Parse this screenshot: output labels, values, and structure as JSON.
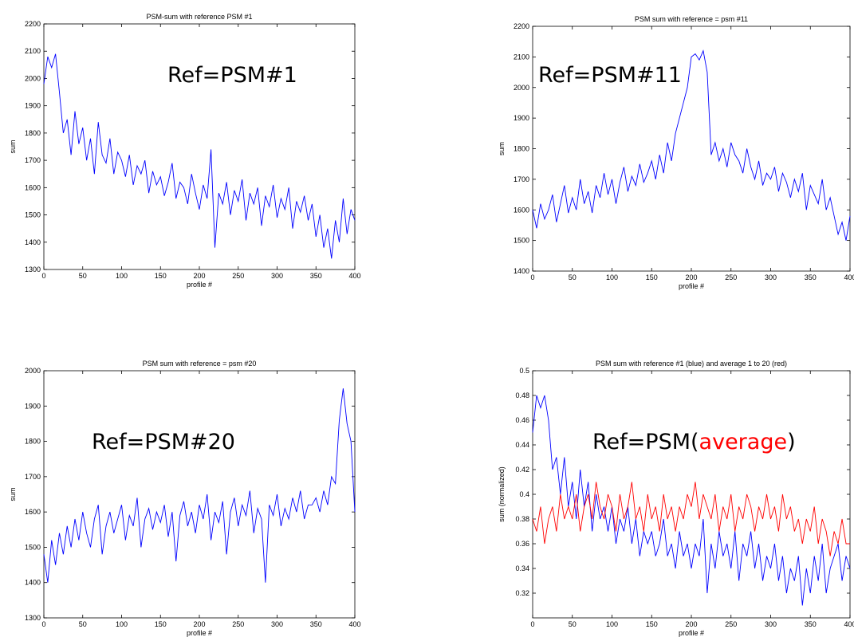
{
  "chart_data": [
    {
      "type": "line",
      "title": "PSM-sum with reference PSM #1",
      "xlabel": "profile #",
      "ylabel": "sum",
      "annotation": [
        {
          "text": "Ref=PSM#1",
          "color": "#000000"
        }
      ],
      "xlim": [
        0,
        400
      ],
      "xticks": [
        0,
        50,
        100,
        150,
        200,
        250,
        300,
        350,
        400
      ],
      "ylim": [
        1300,
        2200
      ],
      "yticks": [
        1300,
        1400,
        1500,
        1600,
        1700,
        1800,
        1900,
        2000,
        2100,
        2200
      ],
      "x": [
        0,
        5,
        10,
        15,
        20,
        25,
        30,
        35,
        40,
        45,
        50,
        55,
        60,
        65,
        70,
        75,
        80,
        85,
        90,
        95,
        100,
        105,
        110,
        115,
        120,
        125,
        130,
        135,
        140,
        145,
        150,
        155,
        160,
        165,
        170,
        175,
        180,
        185,
        190,
        195,
        200,
        205,
        210,
        215,
        220,
        225,
        230,
        235,
        240,
        245,
        250,
        255,
        260,
        265,
        270,
        275,
        280,
        285,
        290,
        295,
        300,
        305,
        310,
        315,
        320,
        325,
        330,
        335,
        340,
        345,
        350,
        355,
        360,
        365,
        370,
        375,
        380,
        385,
        390,
        395,
        400
      ],
      "series": [
        {
          "color": "#0000ff",
          "values": [
            1980,
            2080,
            2040,
            2090,
            1950,
            1800,
            1850,
            1720,
            1880,
            1760,
            1820,
            1700,
            1780,
            1650,
            1840,
            1720,
            1690,
            1780,
            1650,
            1730,
            1700,
            1640,
            1720,
            1610,
            1680,
            1650,
            1700,
            1580,
            1660,
            1610,
            1640,
            1570,
            1620,
            1690,
            1560,
            1620,
            1600,
            1540,
            1650,
            1580,
            1520,
            1610,
            1560,
            1740,
            1380,
            1580,
            1540,
            1620,
            1500,
            1590,
            1550,
            1630,
            1480,
            1580,
            1540,
            1600,
            1460,
            1570,
            1530,
            1610,
            1490,
            1560,
            1520,
            1600,
            1450,
            1550,
            1510,
            1570,
            1480,
            1540,
            1420,
            1500,
            1380,
            1450,
            1340,
            1480,
            1400,
            1560,
            1430,
            1520,
            1480
          ]
        }
      ]
    },
    {
      "type": "line",
      "title": "PSM sum with reference = psm #11",
      "xlabel": "profile #",
      "ylabel": "sum",
      "annotation": [
        {
          "text": "Ref=PSM#11",
          "color": "#000000"
        }
      ],
      "xlim": [
        0,
        400
      ],
      "xticks": [
        0,
        50,
        100,
        150,
        200,
        250,
        300,
        350,
        400
      ],
      "ylim": [
        1400,
        2200
      ],
      "yticks": [
        1400,
        1500,
        1600,
        1700,
        1800,
        1900,
        2000,
        2100,
        2200
      ],
      "x": [
        0,
        5,
        10,
        15,
        20,
        25,
        30,
        35,
        40,
        45,
        50,
        55,
        60,
        65,
        70,
        75,
        80,
        85,
        90,
        95,
        100,
        105,
        110,
        115,
        120,
        125,
        130,
        135,
        140,
        145,
        150,
        155,
        160,
        165,
        170,
        175,
        180,
        185,
        190,
        195,
        200,
        205,
        210,
        215,
        220,
        225,
        230,
        235,
        240,
        245,
        250,
        255,
        260,
        265,
        270,
        275,
        280,
        285,
        290,
        295,
        300,
        305,
        310,
        315,
        320,
        325,
        330,
        335,
        340,
        345,
        350,
        355,
        360,
        365,
        370,
        375,
        380,
        385,
        390,
        395,
        400
      ],
      "series": [
        {
          "color": "#0000ff",
          "values": [
            1600,
            1540,
            1620,
            1570,
            1600,
            1650,
            1560,
            1620,
            1680,
            1590,
            1640,
            1600,
            1700,
            1620,
            1660,
            1590,
            1680,
            1640,
            1720,
            1650,
            1700,
            1620,
            1690,
            1740,
            1660,
            1710,
            1680,
            1750,
            1690,
            1720,
            1760,
            1700,
            1780,
            1720,
            1820,
            1760,
            1850,
            1900,
            1950,
            2000,
            2100,
            2110,
            2090,
            2120,
            2050,
            1780,
            1820,
            1760,
            1800,
            1740,
            1820,
            1780,
            1760,
            1720,
            1800,
            1740,
            1700,
            1760,
            1680,
            1720,
            1700,
            1740,
            1660,
            1720,
            1690,
            1640,
            1700,
            1660,
            1720,
            1600,
            1680,
            1650,
            1620,
            1700,
            1600,
            1640,
            1580,
            1520,
            1560,
            1500,
            1580
          ]
        }
      ]
    },
    {
      "type": "line",
      "title": "PSM sum with reference = psm #20",
      "xlabel": "profile #",
      "ylabel": "sum",
      "annotation": [
        {
          "text": "Ref=PSM#20",
          "color": "#000000"
        }
      ],
      "xlim": [
        0,
        400
      ],
      "xticks": [
        0,
        50,
        100,
        150,
        200,
        250,
        300,
        350,
        400
      ],
      "ylim": [
        1300,
        2000
      ],
      "yticks": [
        1300,
        1400,
        1500,
        1600,
        1700,
        1800,
        1900,
        2000
      ],
      "x": [
        0,
        5,
        10,
        15,
        20,
        25,
        30,
        35,
        40,
        45,
        50,
        55,
        60,
        65,
        70,
        75,
        80,
        85,
        90,
        95,
        100,
        105,
        110,
        115,
        120,
        125,
        130,
        135,
        140,
        145,
        150,
        155,
        160,
        165,
        170,
        175,
        180,
        185,
        190,
        195,
        200,
        205,
        210,
        215,
        220,
        225,
        230,
        235,
        240,
        245,
        250,
        255,
        260,
        265,
        270,
        275,
        280,
        285,
        290,
        295,
        300,
        305,
        310,
        315,
        320,
        325,
        330,
        335,
        340,
        345,
        350,
        355,
        360,
        365,
        370,
        375,
        380,
        385,
        390,
        395,
        400
      ],
      "series": [
        {
          "color": "#0000ff",
          "values": [
            1480,
            1400,
            1520,
            1450,
            1540,
            1480,
            1560,
            1500,
            1580,
            1520,
            1600,
            1540,
            1500,
            1580,
            1620,
            1480,
            1560,
            1600,
            1540,
            1580,
            1620,
            1520,
            1590,
            1560,
            1640,
            1500,
            1580,
            1610,
            1550,
            1600,
            1570,
            1620,
            1530,
            1600,
            1460,
            1590,
            1630,
            1560,
            1600,
            1540,
            1620,
            1580,
            1650,
            1520,
            1600,
            1570,
            1630,
            1480,
            1600,
            1640,
            1560,
            1620,
            1590,
            1660,
            1540,
            1610,
            1580,
            1400,
            1620,
            1590,
            1650,
            1560,
            1610,
            1580,
            1640,
            1600,
            1660,
            1580,
            1620,
            1620,
            1640,
            1600,
            1660,
            1620,
            1700,
            1680,
            1860,
            1950,
            1850,
            1800,
            1600
          ]
        }
      ]
    },
    {
      "type": "line",
      "title": "PSM sum with reference #1 (blue) and average 1 to 20 (red)",
      "xlabel": "profile #",
      "ylabel": "sum (normalized)",
      "annotation": [
        {
          "text": "Ref=PSM(",
          "color": "#000000"
        },
        {
          "text": "average",
          "color": "#ff0000"
        },
        {
          "text": ")",
          "color": "#000000"
        }
      ],
      "xlim": [
        0,
        400
      ],
      "xticks": [
        0,
        50,
        100,
        150,
        200,
        250,
        300,
        350,
        400
      ],
      "ylim": [
        0.3,
        0.5
      ],
      "yticks": [
        0.32,
        0.34,
        0.36,
        0.38,
        0.4,
        0.42,
        0.44,
        0.46,
        0.48,
        0.5
      ],
      "x": [
        0,
        5,
        10,
        15,
        20,
        25,
        30,
        35,
        40,
        45,
        50,
        55,
        60,
        65,
        70,
        75,
        80,
        85,
        90,
        95,
        100,
        105,
        110,
        115,
        120,
        125,
        130,
        135,
        140,
        145,
        150,
        155,
        160,
        165,
        170,
        175,
        180,
        185,
        190,
        195,
        200,
        205,
        210,
        215,
        220,
        225,
        230,
        235,
        240,
        245,
        250,
        255,
        260,
        265,
        270,
        275,
        280,
        285,
        290,
        295,
        300,
        305,
        310,
        315,
        320,
        325,
        330,
        335,
        340,
        345,
        350,
        355,
        360,
        365,
        370,
        375,
        380,
        385,
        390,
        395,
        400
      ],
      "series": [
        {
          "color": "#0000ff",
          "values": [
            0.45,
            0.48,
            0.47,
            0.48,
            0.46,
            0.42,
            0.43,
            0.4,
            0.43,
            0.39,
            0.41,
            0.38,
            0.42,
            0.39,
            0.41,
            0.37,
            0.4,
            0.38,
            0.39,
            0.37,
            0.39,
            0.36,
            0.38,
            0.37,
            0.39,
            0.36,
            0.38,
            0.35,
            0.37,
            0.36,
            0.37,
            0.35,
            0.36,
            0.38,
            0.35,
            0.36,
            0.34,
            0.37,
            0.35,
            0.36,
            0.34,
            0.36,
            0.35,
            0.38,
            0.32,
            0.36,
            0.34,
            0.37,
            0.35,
            0.36,
            0.34,
            0.37,
            0.33,
            0.36,
            0.35,
            0.37,
            0.34,
            0.36,
            0.33,
            0.35,
            0.34,
            0.36,
            0.33,
            0.35,
            0.32,
            0.34,
            0.33,
            0.35,
            0.31,
            0.34,
            0.32,
            0.35,
            0.33,
            0.36,
            0.32,
            0.34,
            0.35,
            0.36,
            0.33,
            0.35,
            0.34
          ]
        },
        {
          "color": "#ff0000",
          "values": [
            0.38,
            0.37,
            0.39,
            0.36,
            0.38,
            0.39,
            0.37,
            0.4,
            0.38,
            0.39,
            0.38,
            0.4,
            0.37,
            0.39,
            0.4,
            0.38,
            0.41,
            0.39,
            0.38,
            0.4,
            0.39,
            0.37,
            0.4,
            0.38,
            0.39,
            0.41,
            0.38,
            0.39,
            0.37,
            0.4,
            0.38,
            0.39,
            0.37,
            0.4,
            0.38,
            0.39,
            0.37,
            0.39,
            0.38,
            0.4,
            0.39,
            0.41,
            0.38,
            0.4,
            0.39,
            0.38,
            0.4,
            0.37,
            0.39,
            0.38,
            0.4,
            0.37,
            0.39,
            0.38,
            0.4,
            0.39,
            0.37,
            0.39,
            0.38,
            0.4,
            0.38,
            0.39,
            0.37,
            0.4,
            0.38,
            0.39,
            0.37,
            0.38,
            0.36,
            0.38,
            0.37,
            0.39,
            0.36,
            0.38,
            0.37,
            0.35,
            0.37,
            0.36,
            0.38,
            0.36,
            0.36
          ]
        }
      ]
    }
  ]
}
